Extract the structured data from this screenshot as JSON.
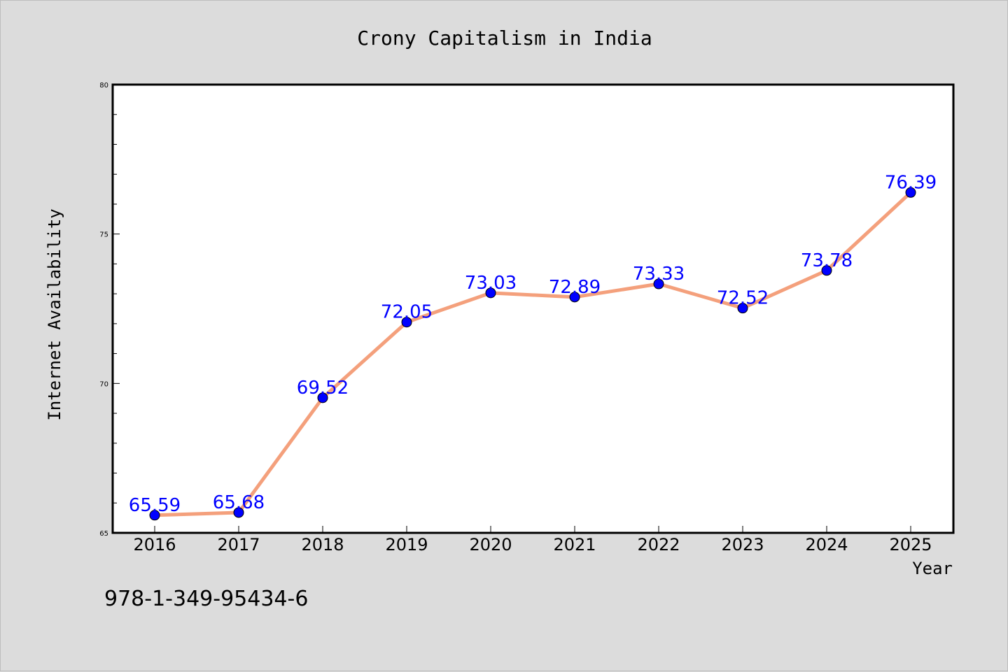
{
  "chart_data": {
    "type": "line",
    "title": "Crony Capitalism in India",
    "xlabel": "Year",
    "ylabel": "Internet Availability",
    "categories": [
      "2016",
      "2017",
      "2018",
      "2019",
      "2020",
      "2021",
      "2022",
      "2023",
      "2024",
      "2025"
    ],
    "series": [
      {
        "values": [
          65.59,
          65.68,
          69.52,
          72.05,
          73.03,
          72.89,
          73.33,
          72.52,
          73.78,
          76.39
        ],
        "data_labels": [
          "65.59",
          "65.68",
          "69.52",
          "72.05",
          "73.03",
          "72.89",
          "73.33",
          "72.52",
          "73.78",
          "76.39"
        ]
      }
    ],
    "ylim": [
      65,
      80
    ],
    "y_ticks": [
      65,
      70,
      75,
      80
    ],
    "y_tick_labels": [
      "65",
      "70",
      "75",
      "80"
    ],
    "grid": false,
    "colors": {
      "line": "#f4a07c",
      "marker": "#0000ff",
      "data_label": "#0000ff",
      "background": "#dcdcdc",
      "plot_background": "#ffffff"
    }
  },
  "footnote": "978-1-349-95434-6"
}
